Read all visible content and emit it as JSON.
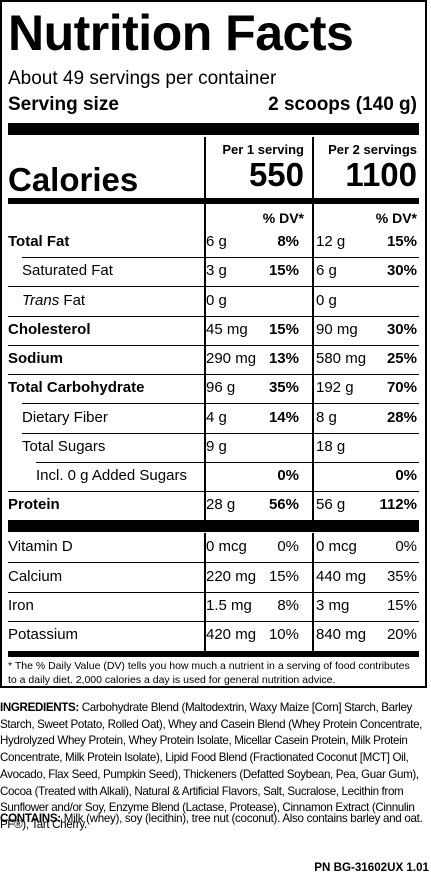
{
  "title": "Nutrition Facts",
  "servings_per_container": "About 49 servings per container",
  "serving_size_label": "Serving size",
  "serving_size_value": "2 scoops (140 g)",
  "col1_header": "Per 1 serving",
  "col2_header": "Per 2 servings",
  "calories_label": "Calories",
  "calories_1": "550",
  "calories_2": "1100",
  "dv_header": "% DV*",
  "nutrients": [
    {
      "name": "Total Fat",
      "amt1": "6 g",
      "dv1": "8%",
      "amt2": "12 g",
      "dv2": "15%"
    },
    {
      "name": "Saturated Fat",
      "amt1": "3 g",
      "dv1": "15%",
      "amt2": "6 g",
      "dv2": "30%"
    },
    {
      "name_italic": "Trans",
      "name_rest": " Fat",
      "amt1": "0 g",
      "dv1": "",
      "amt2": "0 g",
      "dv2": ""
    },
    {
      "name": "Cholesterol",
      "amt1": "45 mg",
      "dv1": "15%",
      "amt2": "90 mg",
      "dv2": "30%"
    },
    {
      "name": "Sodium",
      "amt1": "290 mg",
      "dv1": "13%",
      "amt2": "580 mg",
      "dv2": "25%"
    },
    {
      "name": "Total Carbohydrate",
      "amt1": "96 g",
      "dv1": "35%",
      "amt2": "192 g",
      "dv2": "70%"
    },
    {
      "name": "Dietary Fiber",
      "amt1": "4 g",
      "dv1": "14%",
      "amt2": "8 g",
      "dv2": "28%"
    },
    {
      "name": "Total Sugars",
      "amt1": "9 g",
      "dv1": "",
      "amt2": "18 g",
      "dv2": ""
    },
    {
      "name": "Incl. 0 g Added Sugars",
      "amt1": "",
      "dv1": "0%",
      "amt2": "",
      "dv2": "0%"
    },
    {
      "name": "Protein",
      "amt1": "28 g",
      "dv1": "56%",
      "amt2": "56 g",
      "dv2": "112%"
    }
  ],
  "vitamins": [
    {
      "name": "Vitamin D",
      "amt1": "0 mcg",
      "dv1": "0%",
      "amt2": "0 mcg",
      "dv2": "0%"
    },
    {
      "name": "Calcium",
      "amt1": "220 mg",
      "dv1": "15%",
      "amt2": "440 mg",
      "dv2": "35%"
    },
    {
      "name": "Iron",
      "amt1": "1.5 mg",
      "dv1": "8%",
      "amt2": "3 mg",
      "dv2": "15%"
    },
    {
      "name": "Potassium",
      "amt1": "420 mg",
      "dv1": "10%",
      "amt2": "840 mg",
      "dv2": "20%"
    }
  ],
  "footnote": "* The % Daily Value (DV) tells you how much a nutrient in a serving of food contributes to a daily diet. 2,000 calories a day is used for general nutrition advice.",
  "ingredients_label": "INGREDIENTS:",
  "ingredients_text": " Carbohydrate Blend (Maltodextrin, Waxy Maize [Corn] Starch, Barley Starch, Sweet Potato, Rolled Oat), Whey and Casein Blend (Whey Protein Concentrate, Hydrolyzed Whey Protein, Whey Protein Isolate, Micellar Casein Protein, Milk Protein Concentrate, Milk Protein Isolate), Lipid Food Blend (Fractionated Coconut [MCT] Oil, Avocado, Flax Seed, Pumpkin Seed), Thickeners (Defatted Soybean, Pea, Guar Gum), Cocoa (Treated with Alkali), Natural & Artificial Flavors, Salt, Sucralose, Lecithin from Sunflower and/or Soy, Enzyme Blend (Lactase, Protease), Cinnamon Extract (Cinnulin PF®), Tart Cherry.",
  "contains_label": "CONTAINS:",
  "contains_text": " Milk (whey), soy (lecithin), tree nut (coconut). Also contains barley and oat.",
  "part_number": "PN BG-31602UX 1.01"
}
